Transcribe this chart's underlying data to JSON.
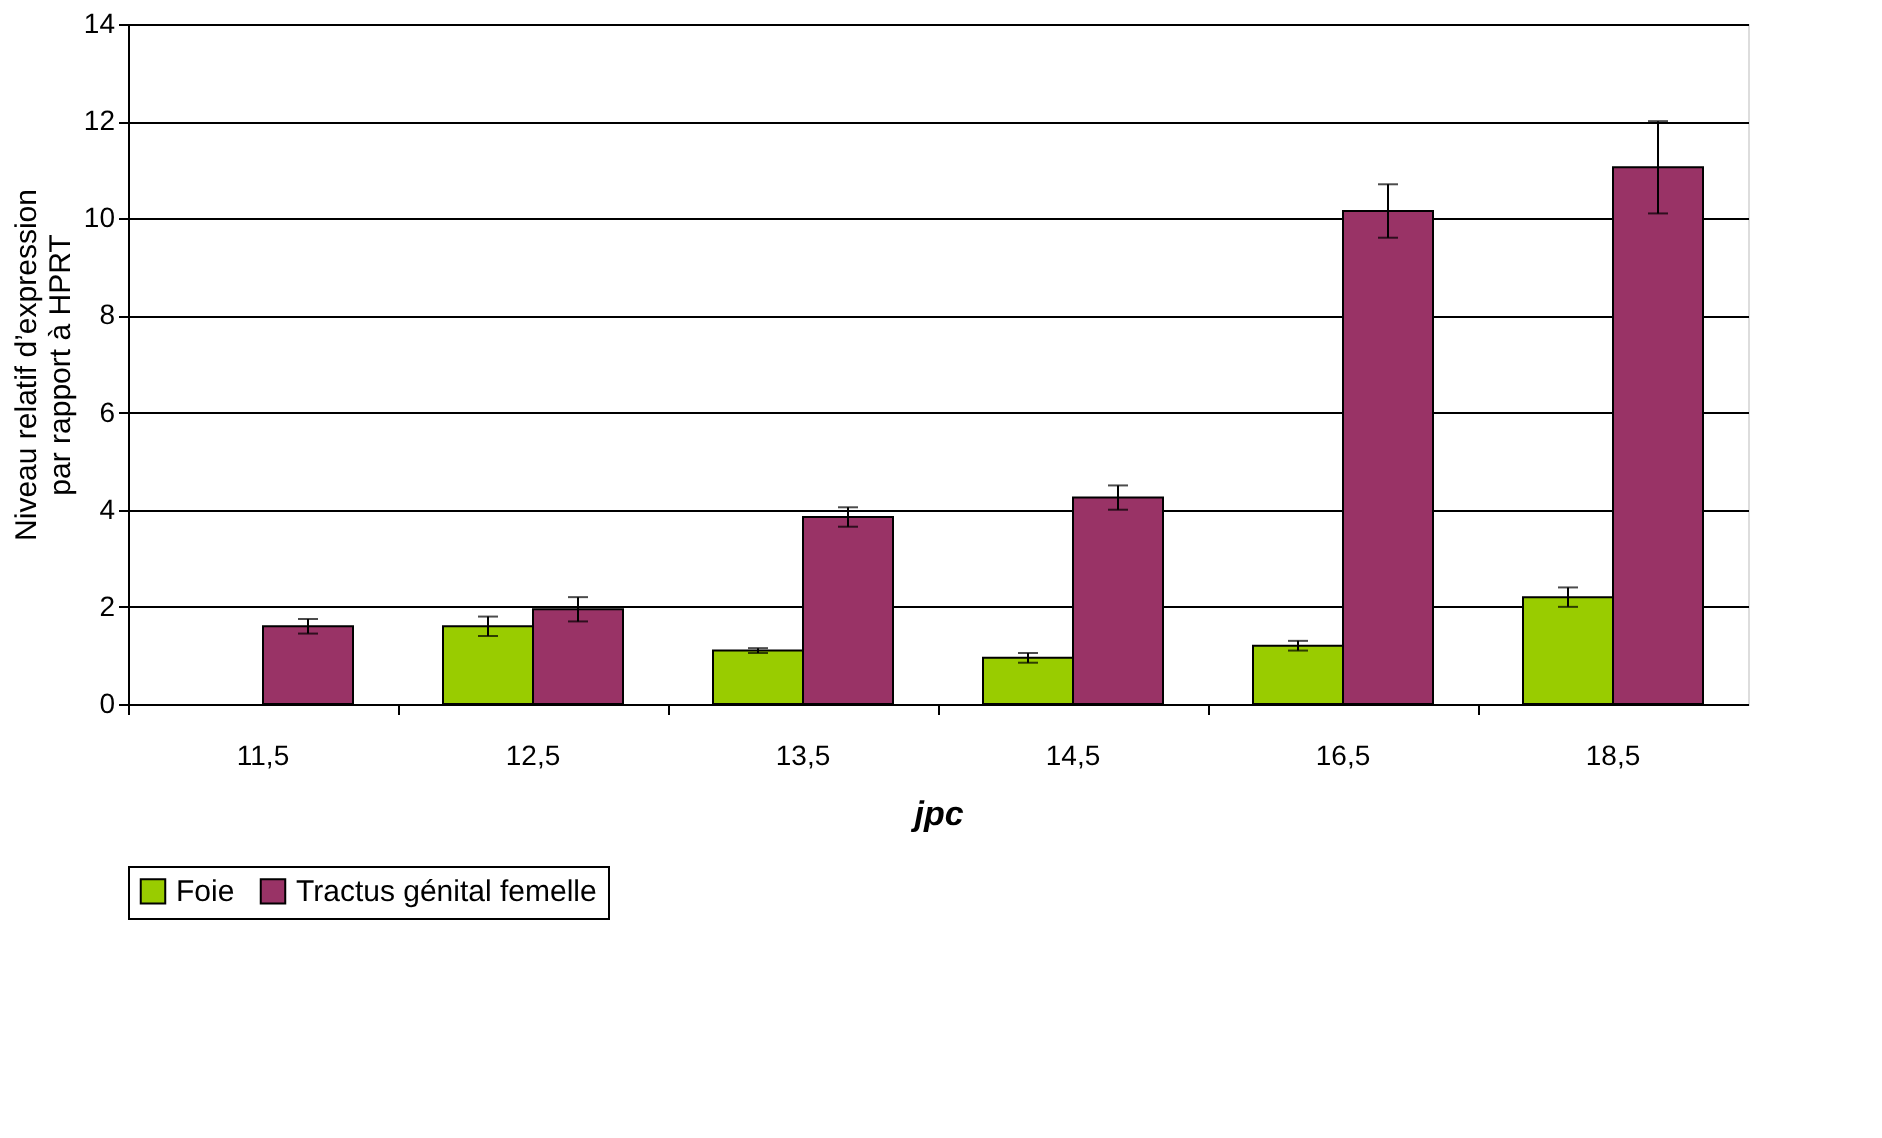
{
  "chart_data": {
    "type": "bar",
    "xlabel": "jpc",
    "ylabel": "Niveau relatif d’expression par rapport à HPRT",
    "categories": [
      "11,5",
      "12,5",
      "13,5",
      "14,5",
      "16,5",
      "18,5"
    ],
    "series": [
      {
        "name": "Foie",
        "color": "#99cc00",
        "values": [
          null,
          1.6,
          1.1,
          0.95,
          1.2,
          2.2
        ],
        "errors": [
          null,
          0.2,
          0.05,
          0.1,
          0.1,
          0.2
        ]
      },
      {
        "name": "Tractus génital femelle",
        "color": "#993366",
        "values": [
          1.6,
          1.95,
          3.85,
          4.25,
          10.15,
          11.05
        ],
        "errors": [
          0.15,
          0.25,
          0.2,
          0.25,
          0.55,
          0.95
        ]
      }
    ],
    "ylim": [
      0,
      14
    ],
    "yticks": [
      0,
      2,
      4,
      6,
      8,
      10,
      12,
      14
    ],
    "grid": "y",
    "legend": "bottom"
  }
}
